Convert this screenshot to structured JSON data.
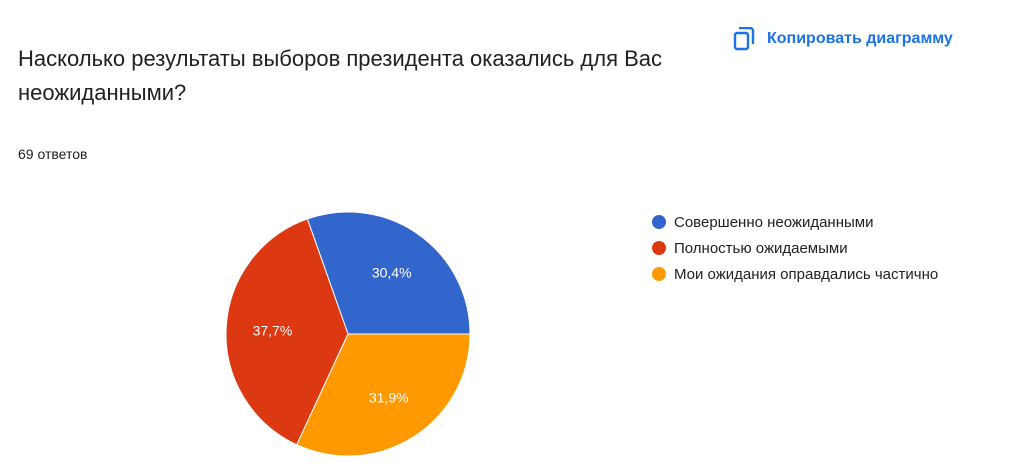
{
  "header": {
    "copy_chart_label": "Копировать диаграмму",
    "copy_icon": "copy-icon"
  },
  "question": {
    "title": "Насколько результаты выборов президента оказались для Вас неожиданными?",
    "responses": "69 ответов"
  },
  "colors": {
    "accent": "#1a73e8"
  },
  "chart_data": {
    "type": "pie",
    "categories": [
      "Совершенно неожиданными",
      "Полностью ожидаемыми",
      "Мои ожидания оправдались частично"
    ],
    "values": [
      30.4,
      37.7,
      31.9
    ],
    "labels": [
      "30,4%",
      "37,7%",
      "31,9%"
    ],
    "colors": [
      "#3366cc",
      "#dc3912",
      "#ff9900"
    ],
    "legend_position": "right"
  }
}
